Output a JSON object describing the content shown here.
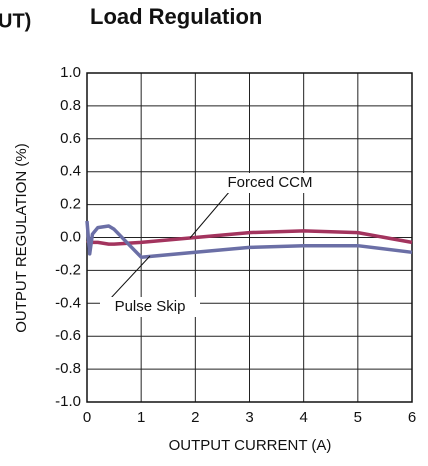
{
  "chart_data": {
    "type": "line",
    "title_prefix": "UT)",
    "title": "Load Regulation",
    "x_label": "OUTPUT CURRENT (A)",
    "y_label": "OUTPUT REGULATION (%)",
    "x": [
      0,
      0.05,
      0.1,
      0.2,
      0.4,
      0.5,
      1,
      2,
      3,
      4,
      5,
      6
    ],
    "series": [
      {
        "name": "Forced CCM",
        "color": "#a3345e",
        "values": [
          -0.02,
          -0.03,
          -0.03,
          -0.03,
          -0.04,
          -0.04,
          -0.03,
          0,
          0.03,
          0.04,
          0.03,
          -0.03
        ]
      },
      {
        "name": "Pulse Skip",
        "color": "#6b6fa6",
        "values": [
          0.1,
          -0.1,
          0.02,
          0.06,
          0.07,
          0.05,
          -0.12,
          -0.09,
          -0.06,
          -0.05,
          -0.05,
          -0.09
        ]
      }
    ],
    "xlim": [
      0,
      6
    ],
    "xticks": [
      0,
      1,
      2,
      3,
      4,
      5,
      6
    ],
    "ylim": [
      -1,
      1
    ],
    "yticks": [
      {
        "value": -1,
        "label": "-1.0"
      },
      -0.8,
      -0.6,
      -0.4,
      -0.2,
      {
        "value": 0,
        "label": "0.0"
      },
      0.2,
      0.4,
      0.6,
      0.8,
      {
        "value": 1,
        "label": "1.0"
      }
    ],
    "grid": true
  }
}
